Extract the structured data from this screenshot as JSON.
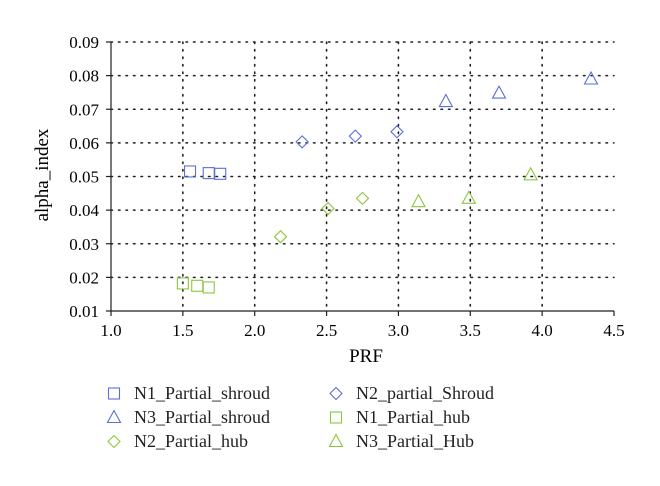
{
  "chart_data": {
    "type": "scatter",
    "title": "",
    "xlabel": "PRF",
    "ylabel": "alpha_index",
    "xlim": [
      1.0,
      4.5
    ],
    "ylim": [
      0.01,
      0.09
    ],
    "xticks": [
      "1.0",
      "1.5",
      "2.0",
      "2.5",
      "3.0",
      "3.5",
      "4.0",
      "4.5"
    ],
    "yticks": [
      "0.01",
      "0.02",
      "0.03",
      "0.04",
      "0.05",
      "0.06",
      "0.07",
      "0.08",
      "0.09"
    ],
    "grid": "dotted",
    "legend_position": "bottom",
    "series": [
      {
        "name": "N1_Partial_shroud",
        "marker": "square",
        "color": "#5b6fd6",
        "x": [
          1.55,
          1.68,
          1.76
        ],
        "y": [
          0.0515,
          0.051,
          0.0508
        ]
      },
      {
        "name": "N2_partial_Shroud",
        "marker": "diamond",
        "color": "#5b6fd6",
        "x": [
          2.33,
          2.7,
          2.99
        ],
        "y": [
          0.0603,
          0.062,
          0.0633
        ]
      },
      {
        "name": "N3_Partial_shroud",
        "marker": "triangle",
        "color": "#5b6fd6",
        "x": [
          3.33,
          3.7,
          4.34
        ],
        "y": [
          0.0723,
          0.0748,
          0.079
        ]
      },
      {
        "name": "N1_Partial_hub",
        "marker": "square",
        "color": "#8cc63f",
        "x": [
          1.5,
          1.6,
          1.68
        ],
        "y": [
          0.0182,
          0.0175,
          0.017
        ]
      },
      {
        "name": "N2_Partial_hub",
        "marker": "diamond",
        "color": "#8cc63f",
        "x": [
          2.18,
          2.51,
          2.75
        ],
        "y": [
          0.0321,
          0.0405,
          0.0435
        ]
      },
      {
        "name": "N3_Partial_Hub",
        "marker": "triangle",
        "color": "#8cc63f",
        "x": [
          3.14,
          3.49,
          3.92
        ],
        "y": [
          0.0425,
          0.0435,
          0.0505
        ]
      }
    ]
  }
}
